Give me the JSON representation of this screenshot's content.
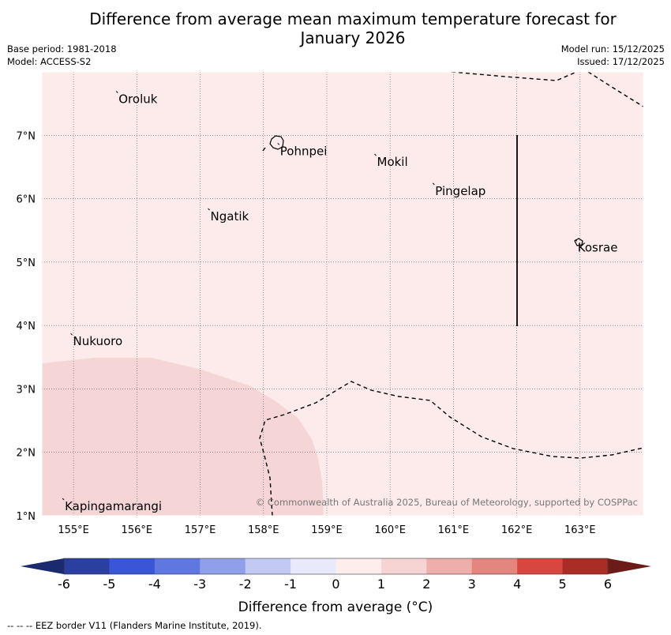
{
  "title": {
    "line1": "Difference from average mean maximum temperature forecast for",
    "line2": "January 2026"
  },
  "meta": {
    "base_period": "Base period: 1981-2018",
    "model": "Model: ACCESS-S2",
    "model_run": "Model run: 15/12/2025",
    "issued": "Issued: 17/12/2025"
  },
  "map": {
    "lon_range": [
      154.5,
      164
    ],
    "lat_range": [
      1,
      8
    ],
    "lon_ticks": [
      "155°E",
      "156°E",
      "157°E",
      "158°E",
      "159°E",
      "160°E",
      "161°E",
      "162°E",
      "163°E"
    ],
    "lat_ticks": [
      "1°N",
      "2°N",
      "3°N",
      "4°N",
      "5°N",
      "6°N",
      "7°N"
    ],
    "background_color": "#fcebea",
    "anomaly_region_color": "#f5d5d5",
    "places": [
      {
        "name": "Oroluk",
        "lon": 155.7,
        "lat": 7.67
      },
      {
        "name": "Pohnpei",
        "lon": 158.25,
        "lat": 6.85
      },
      {
        "name": "Mokil",
        "lon": 159.78,
        "lat": 6.68
      },
      {
        "name": "Pingelap",
        "lon": 160.7,
        "lat": 6.22
      },
      {
        "name": "Ngatik",
        "lon": 157.15,
        "lat": 5.82
      },
      {
        "name": "Kosrae",
        "lon": 162.95,
        "lat": 5.33
      },
      {
        "name": "Nukuoro",
        "lon": 154.98,
        "lat": 3.85
      },
      {
        "name": "Kapingamarangi",
        "lon": 154.85,
        "lat": 1.25
      }
    ],
    "copyright": "© Commonwealth of Australia 2025, Bureau of Meteorology, supported by COSPPac"
  },
  "colorbar": {
    "label": "Difference from average (°C)",
    "ticks": [
      "-6",
      "-5",
      "-4",
      "-3",
      "-2",
      "-1",
      "0",
      "1",
      "2",
      "3",
      "4",
      "5",
      "6"
    ],
    "colors": [
      "#2a3f9f",
      "#3a56d6",
      "#6077e2",
      "#8f9fe9",
      "#c2c9f3",
      "#e8eafb",
      "#fdeeed",
      "#f7d4d4",
      "#eeaeac",
      "#e58580",
      "#d8473f",
      "#a92c27"
    ],
    "low_extend_color": "#1b2a6e",
    "high_extend_color": "#6b1c19"
  },
  "footer": "--  --  -- EEZ border V11 (Flanders Marine Institute, 2019)."
}
